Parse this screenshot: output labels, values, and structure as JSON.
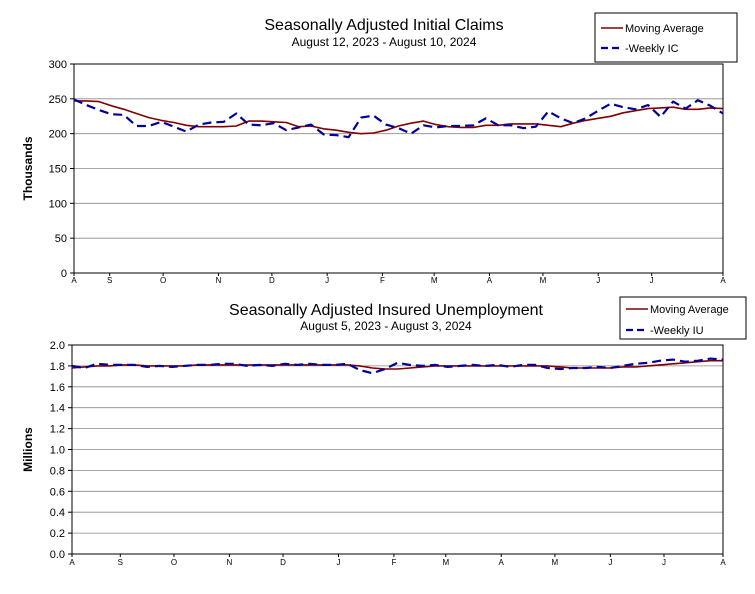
{
  "chart_data": [
    {
      "type": "line",
      "title": "Seasonally Adjusted Initial Claims",
      "subtitle": "August 12, 2023 - August 10, 2024",
      "ylabel": "Thousands",
      "ylim": [
        0,
        300
      ],
      "yticks": [
        "0",
        "50",
        "100",
        "150",
        "200",
        "250",
        "300"
      ],
      "xticks": [
        "A",
        "S",
        "O",
        "N",
        "D",
        "J",
        "F",
        "M",
        "A",
        "M",
        "J",
        "J",
        "A"
      ],
      "grid": true,
      "legend_position": "top-right",
      "x": [
        "2023-08-12",
        "2023-08-19",
        "2023-08-26",
        "2023-09-02",
        "2023-09-09",
        "2023-09-16",
        "2023-09-23",
        "2023-09-30",
        "2023-10-07",
        "2023-10-14",
        "2023-10-21",
        "2023-10-28",
        "2023-11-04",
        "2023-11-11",
        "2023-11-18",
        "2023-11-25",
        "2023-12-02",
        "2023-12-09",
        "2023-12-16",
        "2023-12-23",
        "2023-12-30",
        "2024-01-06",
        "2024-01-13",
        "2024-01-20",
        "2024-01-27",
        "2024-02-03",
        "2024-02-10",
        "2024-02-17",
        "2024-02-24",
        "2024-03-02",
        "2024-03-09",
        "2024-03-16",
        "2024-03-23",
        "2024-03-30",
        "2024-04-06",
        "2024-04-13",
        "2024-04-20",
        "2024-04-27",
        "2024-05-04",
        "2024-05-11",
        "2024-05-18",
        "2024-05-25",
        "2024-06-01",
        "2024-06-08",
        "2024-06-15",
        "2024-06-22",
        "2024-06-29",
        "2024-07-06",
        "2024-07-13",
        "2024-07-20",
        "2024-07-27",
        "2024-08-03",
        "2024-08-10"
      ],
      "series": [
        {
          "name": "Moving Average",
          "color": "#800000",
          "style": "solid",
          "values": [
            247,
            247,
            246,
            240,
            235,
            229,
            223,
            219,
            216,
            212,
            210,
            210,
            210,
            211,
            218,
            218,
            217,
            216,
            210,
            211,
            207,
            205,
            202,
            200,
            201,
            205,
            211,
            215,
            218,
            213,
            210,
            209,
            209,
            212,
            212,
            214,
            214,
            214,
            212,
            210,
            215,
            219,
            222,
            225,
            230,
            233,
            236,
            237,
            238,
            235,
            235,
            237,
            236
          ]
        },
        {
          "name": "Weekly IC",
          "color": "#000099",
          "style": "dashed",
          "values": [
            249,
            241,
            234,
            228,
            227,
            211,
            211,
            217,
            210,
            203,
            213,
            216,
            217,
            229,
            213,
            212,
            215,
            205,
            209,
            213,
            199,
            198,
            195,
            223,
            226,
            213,
            208,
            200,
            212,
            209,
            211,
            211,
            212,
            222,
            212,
            212,
            208,
            210,
            232,
            222,
            215,
            222,
            233,
            243,
            238,
            235,
            241,
            224,
            246,
            236,
            248,
            240,
            229
          ]
        }
      ]
    },
    {
      "type": "line",
      "title": "Seasonally Adjusted Insured Unemployment",
      "subtitle": "August 5, 2023 - August 3, 2024",
      "ylabel": "Millions",
      "ylim": [
        0,
        2.0
      ],
      "yticks": [
        "0.0",
        "0.2",
        "0.4",
        "0.6",
        "0.8",
        "1.0",
        "1.2",
        "1.4",
        "1.6",
        "1.8",
        "2.0"
      ],
      "xticks": [
        "A",
        "S",
        "O",
        "N",
        "D",
        "J",
        "F",
        "M",
        "A",
        "M",
        "J",
        "J",
        "A"
      ],
      "grid": true,
      "legend_position": "top-right",
      "x": [
        "2023-08-05",
        "2023-08-12",
        "2023-08-19",
        "2023-08-26",
        "2023-09-02",
        "2023-09-09",
        "2023-09-16",
        "2023-09-23",
        "2023-09-30",
        "2023-10-07",
        "2023-10-14",
        "2023-10-21",
        "2023-10-28",
        "2023-11-04",
        "2023-11-11",
        "2023-11-18",
        "2023-11-25",
        "2023-12-02",
        "2023-12-09",
        "2023-12-16",
        "2023-12-23",
        "2023-12-30",
        "2024-01-06",
        "2024-01-13",
        "2024-01-20",
        "2024-01-27",
        "2024-02-03",
        "2024-02-10",
        "2024-02-17",
        "2024-02-24",
        "2024-03-02",
        "2024-03-09",
        "2024-03-16",
        "2024-03-23",
        "2024-03-30",
        "2024-04-06",
        "2024-04-13",
        "2024-04-20",
        "2024-04-27",
        "2024-05-04",
        "2024-05-11",
        "2024-05-18",
        "2024-05-25",
        "2024-06-01",
        "2024-06-08",
        "2024-06-15",
        "2024-06-22",
        "2024-06-29",
        "2024-07-06",
        "2024-07-13",
        "2024-07-20",
        "2024-07-27",
        "2024-08-03"
      ],
      "series": [
        {
          "name": "Moving Average",
          "color": "#800000",
          "style": "solid",
          "values": [
            1.78,
            1.79,
            1.8,
            1.8,
            1.81,
            1.81,
            1.8,
            1.8,
            1.8,
            1.8,
            1.81,
            1.81,
            1.81,
            1.81,
            1.81,
            1.81,
            1.81,
            1.81,
            1.81,
            1.81,
            1.81,
            1.81,
            1.81,
            1.8,
            1.78,
            1.77,
            1.77,
            1.78,
            1.79,
            1.8,
            1.8,
            1.8,
            1.8,
            1.8,
            1.8,
            1.8,
            1.8,
            1.8,
            1.8,
            1.79,
            1.78,
            1.78,
            1.78,
            1.78,
            1.79,
            1.79,
            1.8,
            1.81,
            1.82,
            1.83,
            1.84,
            1.85,
            1.85
          ]
        },
        {
          "name": "Weekly IU",
          "color": "#000099",
          "style": "dashed",
          "values": [
            1.8,
            1.78,
            1.82,
            1.81,
            1.81,
            1.81,
            1.79,
            1.8,
            1.79,
            1.8,
            1.81,
            1.81,
            1.82,
            1.82,
            1.8,
            1.81,
            1.8,
            1.82,
            1.81,
            1.82,
            1.81,
            1.81,
            1.82,
            1.76,
            1.73,
            1.77,
            1.83,
            1.81,
            1.8,
            1.81,
            1.79,
            1.8,
            1.81,
            1.8,
            1.81,
            1.79,
            1.81,
            1.81,
            1.78,
            1.77,
            1.78,
            1.78,
            1.79,
            1.78,
            1.8,
            1.82,
            1.83,
            1.85,
            1.86,
            1.84,
            1.85,
            1.87,
            1.86
          ]
        }
      ]
    }
  ]
}
